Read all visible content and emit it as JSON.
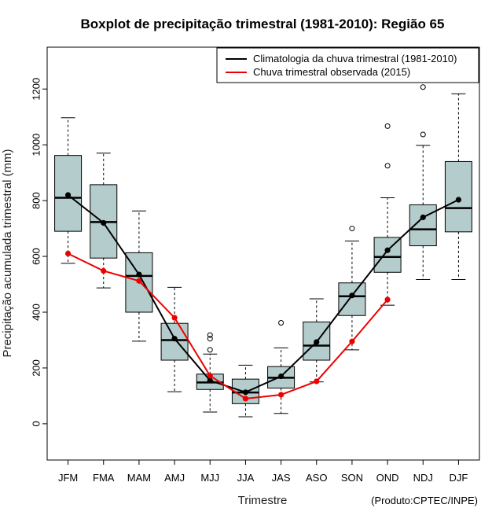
{
  "chart_data": {
    "type": "boxplot",
    "title": "Boxplot de precipitação trimestral (1981-2010): Região 65",
    "xlabel": "Trimestre",
    "ylabel": "Precipitação acumulada trimestral (mm)",
    "ylim": [
      -130,
      1350
    ],
    "yticks": [
      0,
      200,
      400,
      600,
      800,
      1000,
      1200
    ],
    "credit": "(Produto:CPTEC/INPE)",
    "colors": {
      "box": "#b5cccc",
      "climatology": "#000000",
      "observed": "#ee0000"
    },
    "categories": [
      "JFM",
      "FMA",
      "MAM",
      "AMJ",
      "MJJ",
      "JJA",
      "JAS",
      "ASO",
      "SON",
      "OND",
      "NDJ",
      "DJF"
    ],
    "boxes": [
      {
        "min": 575,
        "q1": 690,
        "median": 810,
        "q3": 962,
        "max": 1097,
        "outliers": []
      },
      {
        "min": 487,
        "q1": 594,
        "median": 723,
        "q3": 857,
        "max": 970,
        "outliers": []
      },
      {
        "min": 296,
        "q1": 400,
        "median": 530,
        "q3": 613,
        "max": 763,
        "outliers": []
      },
      {
        "min": 115,
        "q1": 228,
        "median": 300,
        "q3": 360,
        "max": 489,
        "outliers": []
      },
      {
        "min": 42,
        "q1": 123,
        "median": 148,
        "q3": 178,
        "max": 250,
        "outliers": [
          265,
          305,
          318
        ]
      },
      {
        "min": 25,
        "q1": 72,
        "median": 112,
        "q3": 160,
        "max": 210,
        "outliers": []
      },
      {
        "min": 37,
        "q1": 128,
        "median": 165,
        "q3": 205,
        "max": 272,
        "outliers": [
          362
        ]
      },
      {
        "min": 150,
        "q1": 228,
        "median": 280,
        "q3": 365,
        "max": 448,
        "outliers": []
      },
      {
        "min": 265,
        "q1": 388,
        "median": 457,
        "q3": 505,
        "max": 655,
        "outliers": [
          700
        ]
      },
      {
        "min": 425,
        "q1": 543,
        "median": 598,
        "q3": 668,
        "max": 810,
        "outliers": [
          925,
          1067
        ]
      },
      {
        "min": 517,
        "q1": 638,
        "median": 697,
        "q3": 785,
        "max": 998,
        "outliers": [
          1037,
          1207
        ]
      },
      {
        "min": 517,
        "q1": 688,
        "median": 773,
        "q3": 940,
        "max": 1183,
        "outliers": []
      }
    ],
    "series": [
      {
        "name": "Climatologia da chuva trimestral (1981-2010)",
        "values": [
          820,
          720,
          535,
          305,
          155,
          113,
          170,
          293,
          460,
          622,
          740,
          803
        ]
      },
      {
        "name": "Chuva trimestral observada (2015)",
        "values": [
          610,
          548,
          512,
          380,
          172,
          90,
          104,
          152,
          295,
          445,
          null,
          null
        ]
      }
    ],
    "legend_position": "top-right"
  }
}
